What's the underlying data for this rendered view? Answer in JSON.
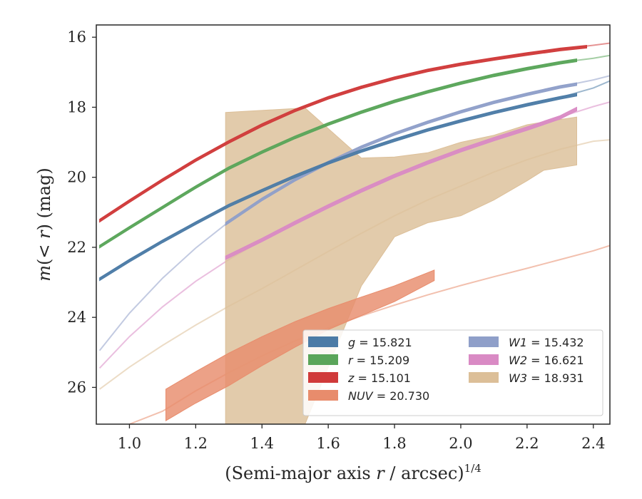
{
  "chart_data": {
    "type": "line",
    "xlabel": "(Semi-major axis r / arcsec)^1/4",
    "ylabel": "m(< r) (mag)",
    "xlim": [
      0.9,
      2.45
    ],
    "ylim": [
      27.05,
      15.65
    ],
    "y_inverted": true,
    "grid": false,
    "legend_position": "lower-right",
    "x_ticks": [
      "1.0",
      "1.2",
      "1.4",
      "1.6",
      "1.8",
      "2.0",
      "2.2",
      "2.4"
    ],
    "x_tick_values": [
      1.0,
      1.2,
      1.4,
      1.6,
      1.8,
      2.0,
      2.2,
      2.4
    ],
    "y_ticks": [
      "16",
      "18",
      "20",
      "22",
      "24",
      "26"
    ],
    "y_tick_values": [
      16,
      18,
      20,
      22,
      24,
      26
    ],
    "series": [
      {
        "name": "g",
        "legend_value": "15.821",
        "color": "#4c7ba6",
        "model_x": [
          0.91,
          1.0,
          1.1,
          1.2,
          1.3,
          1.4,
          1.5,
          1.6,
          1.7,
          1.8,
          1.9,
          2.0,
          2.1,
          2.2,
          2.3,
          2.4,
          2.45
        ],
        "model_y": [
          22.9,
          22.37,
          21.82,
          21.3,
          20.8,
          20.37,
          19.96,
          19.58,
          19.24,
          18.93,
          18.64,
          18.38,
          18.14,
          17.92,
          17.72,
          17.45,
          17.25
        ],
        "band_x": [
          0.91,
          1.0,
          1.1,
          1.2,
          1.3,
          1.4,
          1.5,
          1.6,
          1.7,
          1.8,
          1.9,
          2.0,
          2.1,
          2.2,
          2.3,
          2.35
        ],
        "band_lo": [
          22.87,
          22.34,
          21.79,
          21.27,
          20.77,
          20.34,
          19.93,
          19.55,
          19.21,
          18.9,
          18.61,
          18.35,
          18.11,
          17.89,
          17.69,
          17.6
        ],
        "band_hi": [
          22.95,
          22.42,
          21.87,
          21.35,
          20.85,
          20.42,
          20.01,
          19.63,
          19.29,
          18.98,
          18.69,
          18.43,
          18.19,
          17.97,
          17.77,
          17.68
        ]
      },
      {
        "name": "r",
        "legend_value": "15.209",
        "color": "#5aa55a",
        "model_x": [
          0.91,
          1.0,
          1.1,
          1.2,
          1.3,
          1.4,
          1.5,
          1.6,
          1.7,
          1.8,
          1.9,
          2.0,
          2.1,
          2.2,
          2.3,
          2.4,
          2.45
        ],
        "model_y": [
          21.97,
          21.43,
          20.85,
          20.27,
          19.73,
          19.27,
          18.85,
          18.47,
          18.13,
          17.82,
          17.55,
          17.3,
          17.08,
          16.89,
          16.72,
          16.6,
          16.52
        ],
        "band_x": [
          0.91,
          1.0,
          1.1,
          1.2,
          1.3,
          1.4,
          1.5,
          1.6,
          1.7,
          1.8,
          1.9,
          2.0,
          2.1,
          2.2,
          2.3,
          2.35
        ],
        "band_lo": [
          21.94,
          21.4,
          20.82,
          20.24,
          19.7,
          19.24,
          18.82,
          18.44,
          18.1,
          17.79,
          17.52,
          17.27,
          17.05,
          16.86,
          16.69,
          16.62
        ],
        "band_hi": [
          22.02,
          21.48,
          20.9,
          20.32,
          19.78,
          19.32,
          18.9,
          18.52,
          18.18,
          17.87,
          17.6,
          17.35,
          17.13,
          16.94,
          16.77,
          16.7
        ]
      },
      {
        "name": "z",
        "legend_value": "15.101",
        "color": "#d03a3a",
        "model_x": [
          0.91,
          1.0,
          1.1,
          1.2,
          1.3,
          1.4,
          1.5,
          1.6,
          1.7,
          1.8,
          1.9,
          2.0,
          2.1,
          2.2,
          2.3,
          2.4,
          2.45
        ],
        "model_y": [
          21.23,
          20.67,
          20.07,
          19.5,
          18.98,
          18.5,
          18.08,
          17.72,
          17.42,
          17.16,
          16.94,
          16.76,
          16.61,
          16.47,
          16.34,
          16.23,
          16.17
        ],
        "band_x": [
          0.91,
          1.0,
          1.1,
          1.2,
          1.3,
          1.4,
          1.5,
          1.6,
          1.7,
          1.8,
          1.9,
          2.0,
          2.1,
          2.2,
          2.3,
          2.38
        ],
        "band_lo": [
          21.2,
          20.64,
          20.04,
          19.47,
          18.95,
          18.47,
          18.05,
          17.69,
          17.39,
          17.13,
          16.91,
          16.73,
          16.58,
          16.44,
          16.31,
          16.23
        ],
        "band_hi": [
          21.28,
          20.72,
          20.12,
          19.55,
          19.03,
          18.55,
          18.13,
          17.77,
          17.47,
          17.21,
          16.99,
          16.81,
          16.66,
          16.52,
          16.39,
          16.31
        ]
      },
      {
        "name": "NUV",
        "legend_value": "20.730",
        "color": "#e88c6c",
        "model_x": [
          1.0,
          1.1,
          1.2,
          1.3,
          1.4,
          1.5,
          1.6,
          1.7,
          1.8,
          1.9,
          2.0,
          2.1,
          2.2,
          2.3,
          2.4,
          2.45
        ],
        "model_y": [
          27.05,
          26.68,
          26.1,
          25.58,
          25.1,
          24.67,
          24.3,
          23.96,
          23.65,
          23.36,
          23.09,
          22.84,
          22.6,
          22.35,
          22.1,
          21.95
        ],
        "band_x": [
          1.11,
          1.2,
          1.3,
          1.4,
          1.5,
          1.6,
          1.7,
          1.8,
          1.92
        ],
        "band_lo": [
          26.05,
          25.55,
          25.02,
          24.55,
          24.12,
          23.75,
          23.42,
          23.1,
          22.65
        ],
        "band_hi": [
          26.95,
          26.45,
          25.95,
          25.38,
          24.85,
          24.35,
          23.95,
          23.55,
          22.95
        ]
      },
      {
        "name": "W1",
        "legend_value": "15.432",
        "color": "#8f9fc9",
        "model_x": [
          0.91,
          1.0,
          1.1,
          1.2,
          1.3,
          1.4,
          1.5,
          1.6,
          1.7,
          1.8,
          1.9,
          2.0,
          2.1,
          2.2,
          2.3,
          2.4,
          2.45
        ],
        "model_y": [
          24.95,
          23.88,
          22.88,
          22.02,
          21.27,
          20.62,
          20.06,
          19.57,
          19.13,
          18.75,
          18.42,
          18.12,
          17.85,
          17.62,
          17.41,
          17.22,
          17.1
        ],
        "band_x": [
          1.29,
          1.4,
          1.5,
          1.6,
          1.7,
          1.8,
          1.9,
          2.0,
          2.1,
          2.2,
          2.3,
          2.35
        ],
        "band_lo": [
          21.29,
          20.59,
          20.03,
          19.54,
          19.1,
          18.72,
          18.39,
          18.09,
          17.82,
          17.59,
          17.38,
          17.3
        ],
        "band_hi": [
          21.37,
          20.67,
          20.11,
          19.62,
          19.18,
          18.8,
          18.47,
          18.17,
          17.9,
          17.67,
          17.46,
          17.38
        ]
      },
      {
        "name": "W2",
        "legend_value": "16.621",
        "color": "#d98ac4",
        "model_x": [
          0.91,
          1.0,
          1.1,
          1.2,
          1.3,
          1.4,
          1.5,
          1.6,
          1.7,
          1.8,
          1.9,
          2.0,
          2.1,
          2.2,
          2.3,
          2.4,
          2.45
        ],
        "model_y": [
          25.45,
          24.55,
          23.7,
          22.97,
          22.35,
          21.8,
          21.3,
          20.82,
          20.37,
          19.95,
          19.57,
          19.22,
          18.9,
          18.6,
          18.28,
          17.98,
          17.85
        ],
        "band_x": [
          1.29,
          1.4,
          1.5,
          1.6,
          1.7,
          1.8,
          1.9,
          2.0,
          2.1,
          2.2,
          2.3,
          2.35
        ],
        "band_lo": [
          22.25,
          21.74,
          21.25,
          20.78,
          20.33,
          19.91,
          19.53,
          19.18,
          18.86,
          18.56,
          18.24,
          18.0
        ],
        "band_hi": [
          22.35,
          21.84,
          21.35,
          20.88,
          20.43,
          20.01,
          19.63,
          19.28,
          18.96,
          18.66,
          18.34,
          18.1
        ]
      },
      {
        "name": "W3",
        "legend_value": "18.931",
        "color": "#dcbf98",
        "model_x": [
          0.91,
          1.0,
          1.1,
          1.2,
          1.3,
          1.4,
          1.5,
          1.6,
          1.7,
          1.8,
          1.9,
          2.0,
          2.1,
          2.2,
          2.3,
          2.4,
          2.45
        ],
        "model_y": [
          26.05,
          25.42,
          24.8,
          24.22,
          23.68,
          23.18,
          22.65,
          22.12,
          21.6,
          21.1,
          20.65,
          20.25,
          19.85,
          19.5,
          19.2,
          18.97,
          18.93
        ],
        "band_x": [
          1.29,
          1.53,
          1.7,
          1.8,
          1.9,
          2.0,
          2.1,
          2.2,
          2.25,
          2.35
        ],
        "band_lo": [
          18.15,
          18.02,
          19.45,
          19.42,
          19.3,
          19.0,
          18.8,
          18.5,
          18.42,
          18.28
        ],
        "band_hi": [
          27.05,
          27.05,
          23.1,
          21.7,
          21.3,
          21.1,
          20.65,
          20.1,
          19.8,
          19.65
        ]
      }
    ]
  }
}
